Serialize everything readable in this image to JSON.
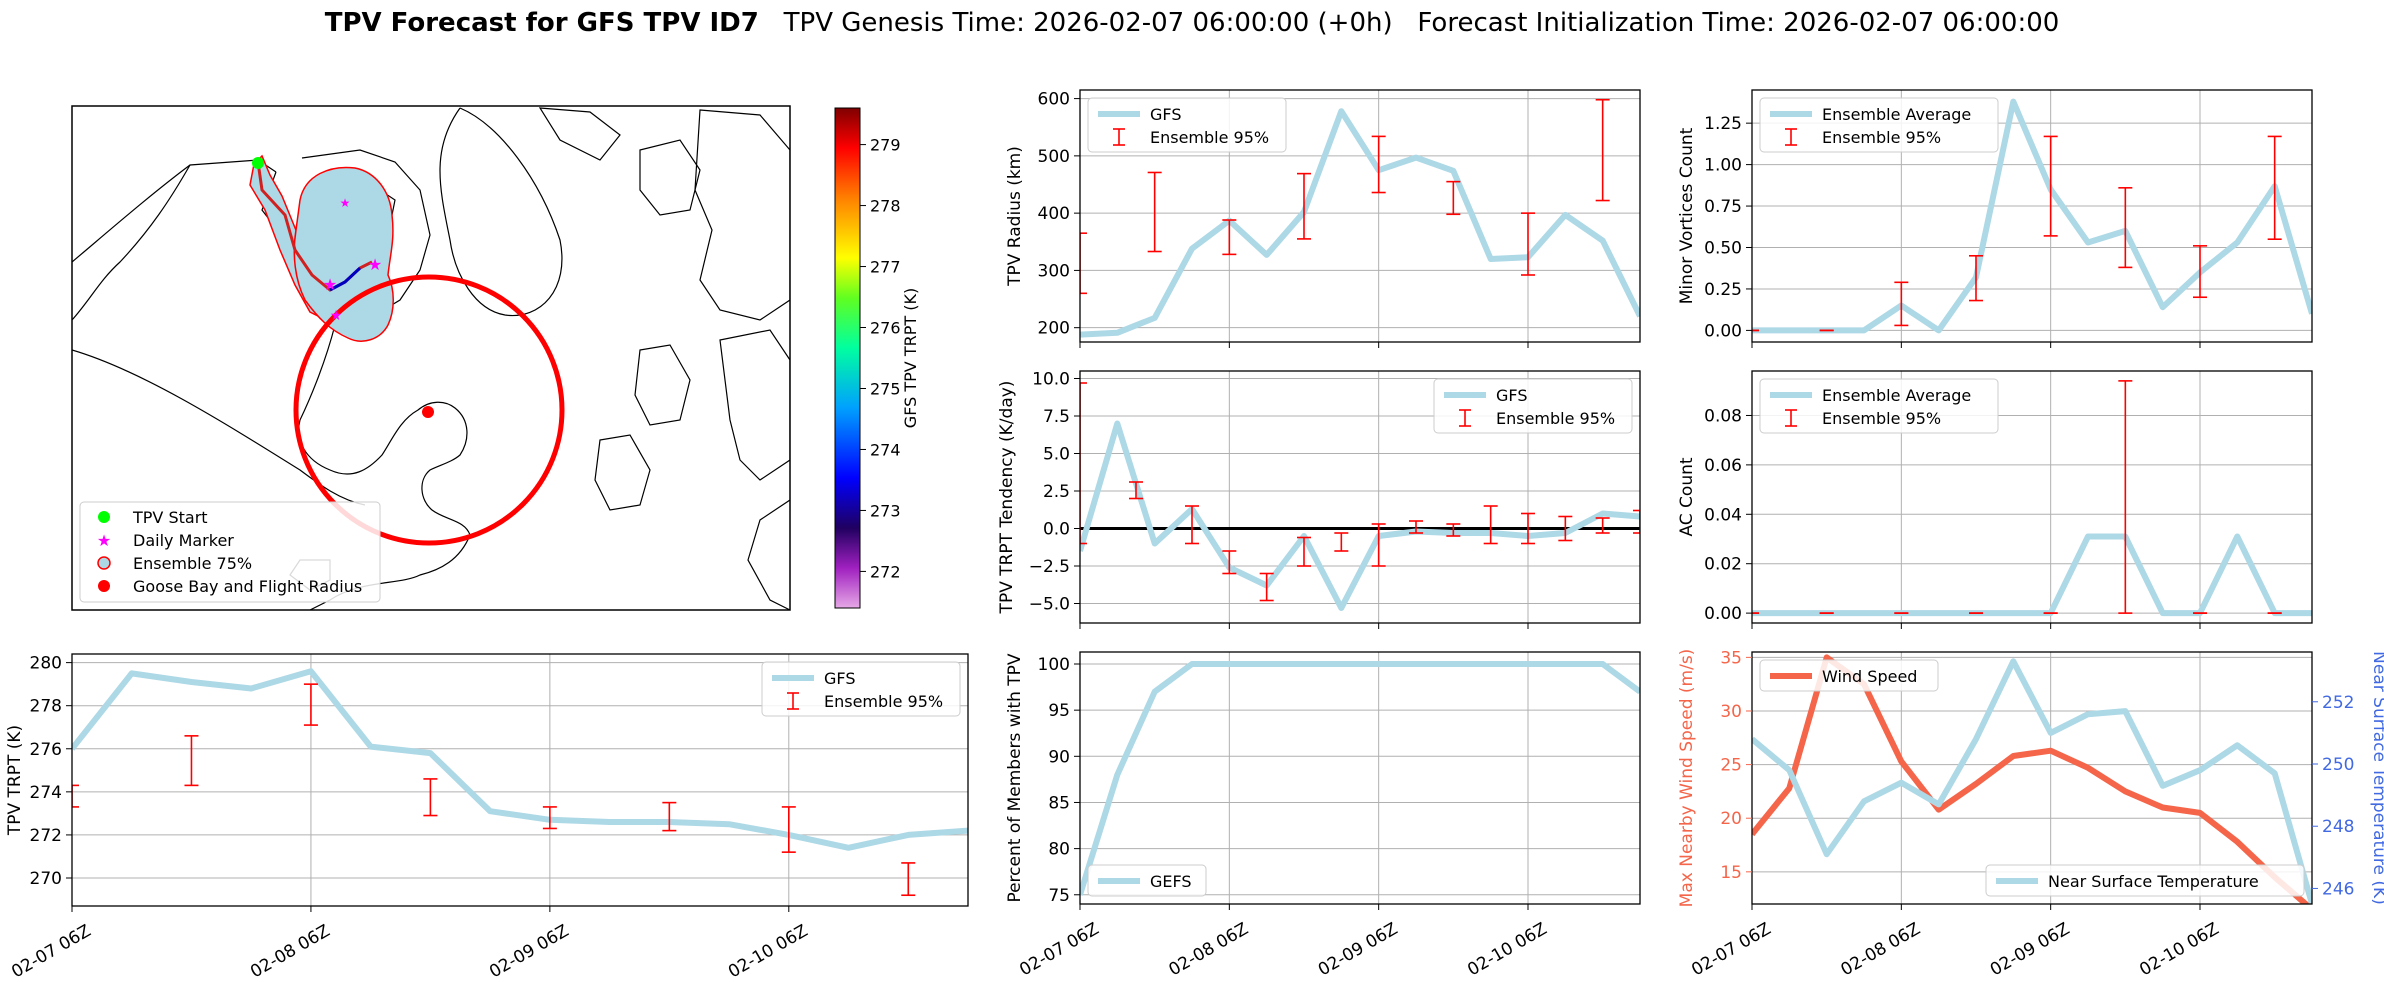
{
  "header": {
    "title_bold": "TPV Forecast for GFS TPV ID7",
    "title_rest": "   TPV Genesis Time: 2026-02-07 06:00:00 (+0h)   Forecast Initialization Time: 2026-02-07 06:00:00"
  },
  "colors": {
    "light_blue": "#add8e6",
    "red": "#ff0000",
    "tomato": "#f4654a",
    "royal_blue": "#4169e1",
    "grid": "#b0b0b0"
  },
  "map": {
    "legend": [
      "TPV Start",
      "Daily Marker",
      "Ensemble 75%",
      "Goose Bay and Flight Radius"
    ],
    "colorbar": {
      "label": "GFS TPV TRPT (K)",
      "ticks": [
        272,
        273,
        274,
        275,
        276,
        277,
        278,
        279
      ],
      "range": [
        271.4,
        279.6
      ]
    }
  },
  "time_axis_labels": [
    "02-07 06Z",
    "02-08 06Z",
    "02-09 06Z",
    "02-10 06Z"
  ],
  "chart_data": [
    {
      "id": "trpt",
      "type": "line",
      "ylabel": "TPV TRPT (K)",
      "ylim": [
        268.7,
        280.4
      ],
      "yticks": [
        270,
        272,
        274,
        276,
        278,
        280
      ],
      "legend": "top-right",
      "series": [
        {
          "name": "GFS",
          "x": [
            0,
            6,
            12,
            18,
            24,
            30,
            36,
            42,
            48,
            54,
            60,
            66,
            72,
            78,
            84,
            90
          ],
          "y": [
            276.0,
            279.5,
            279.1,
            278.8,
            279.6,
            276.1,
            275.8,
            273.1,
            272.7,
            272.6,
            272.6,
            272.5,
            272.0,
            271.4,
            272.0,
            272.2
          ]
        }
      ],
      "errorbars": {
        "name": "Ensemble 95%",
        "x": [
          0,
          12,
          24,
          36,
          48,
          60,
          72,
          84
        ],
        "low": [
          273.3,
          274.3,
          277.1,
          272.9,
          272.3,
          272.2,
          271.2,
          269.2
        ],
        "high": [
          274.3,
          276.6,
          279.0,
          274.6,
          273.3,
          273.5,
          273.3,
          270.7
        ]
      }
    },
    {
      "id": "radius",
      "type": "line",
      "ylabel": "TPV Radius (km)",
      "ylim": [
        175,
        615
      ],
      "yticks": [
        200,
        300,
        400,
        500,
        600
      ],
      "legend": "top-left",
      "series": [
        {
          "name": "GFS",
          "x": [
            0,
            6,
            12,
            18,
            24,
            30,
            36,
            42,
            48,
            54,
            60,
            66,
            72,
            78,
            84,
            90
          ],
          "y": [
            188,
            191,
            217,
            338,
            387,
            327,
            402,
            578,
            475,
            497,
            474,
            320,
            323,
            397,
            352,
            220
          ]
        }
      ],
      "errorbars": {
        "name": "Ensemble 95%",
        "x": [
          0,
          12,
          24,
          36,
          48,
          60,
          72,
          84
        ],
        "low": [
          260,
          333,
          328,
          355,
          436,
          398,
          292,
          422
        ],
        "high": [
          365,
          471,
          388,
          469,
          534,
          455,
          400,
          598
        ]
      }
    },
    {
      "id": "minor",
      "type": "line",
      "ylabel": "Minor Vortices Count",
      "ylim": [
        -0.07,
        1.45
      ],
      "yticks": [
        0.0,
        0.25,
        0.5,
        0.75,
        1.0,
        1.25
      ],
      "legend": "top-left",
      "series": [
        {
          "name": "Ensemble Average",
          "x": [
            0,
            6,
            12,
            18,
            24,
            30,
            36,
            42,
            48,
            54,
            60,
            66,
            72,
            78,
            84,
            90
          ],
          "y": [
            0,
            0,
            0,
            0,
            0.15,
            0,
            0.32,
            1.38,
            0.85,
            0.53,
            0.6,
            0.14,
            0.35,
            0.53,
            0.87,
            0.1
          ]
        }
      ],
      "errorbars": {
        "name": "Ensemble 95%",
        "x": [
          0,
          12,
          24,
          36,
          48,
          60,
          72,
          84
        ],
        "low": [
          0,
          0,
          0.03,
          0.18,
          0.57,
          0.38,
          0.2,
          0.55
        ],
        "high": [
          0,
          0,
          0.29,
          0.45,
          1.17,
          0.86,
          0.51,
          1.17
        ]
      }
    },
    {
      "id": "tendency",
      "type": "line",
      "ylabel": "TPV TRPT Tendency (K/day)",
      "ylim": [
        -6.3,
        10.5
      ],
      "yticks": [
        -5.0,
        -2.5,
        0.0,
        2.5,
        5.0,
        7.5,
        10.0
      ],
      "legend": "top-right",
      "series": [
        {
          "name": "GFS",
          "x": [
            0,
            6,
            12,
            18,
            24,
            30,
            36,
            42,
            48,
            54,
            60,
            66,
            72,
            78,
            84,
            90
          ],
          "y": [
            -1.5,
            7.0,
            -1.0,
            1.3,
            -2.6,
            -3.8,
            -0.5,
            -5.3,
            -0.5,
            -0.2,
            -0.3,
            -0.3,
            -0.5,
            -0.3,
            1.0,
            0.8
          ]
        }
      ],
      "errorbars": {
        "name": "Ensemble 95%",
        "x": [
          0,
          9,
          18,
          24,
          30,
          36,
          42,
          48,
          54,
          60,
          66,
          72,
          78,
          84,
          90
        ],
        "low": [
          -1.0,
          2.0,
          -1.0,
          -3.0,
          -4.8,
          -2.5,
          -1.5,
          -2.5,
          -0.3,
          -0.5,
          -1.0,
          -1.0,
          -0.8,
          -0.3,
          -0.3
        ],
        "high": [
          9.7,
          3.1,
          1.5,
          -1.5,
          -3.0,
          -0.6,
          -0.3,
          0.3,
          0.5,
          0.3,
          1.5,
          1.0,
          0.8,
          0.7,
          1.2
        ]
      },
      "zero_line": true
    },
    {
      "id": "ac",
      "type": "line",
      "ylabel": "AC Count",
      "ylim": [
        -0.004,
        0.098
      ],
      "yticks": [
        0.0,
        0.02,
        0.04,
        0.06,
        0.08
      ],
      "legend": "top-left",
      "series": [
        {
          "name": "Ensemble Average",
          "x": [
            0,
            6,
            12,
            18,
            24,
            30,
            36,
            42,
            48,
            54,
            60,
            66,
            72,
            78,
            84,
            90
          ],
          "y": [
            0,
            0,
            0,
            0,
            0,
            0,
            0,
            0,
            0,
            0.031,
            0.031,
            0,
            0,
            0.031,
            0,
            0
          ]
        }
      ],
      "errorbars": {
        "name": "Ensemble 95%",
        "x": [
          0,
          12,
          24,
          36,
          48,
          60,
          72,
          84
        ],
        "low": [
          0,
          0,
          0,
          0,
          0,
          0,
          0,
          0
        ],
        "high": [
          0,
          0,
          0,
          0,
          0,
          0.094,
          0,
          0
        ]
      }
    },
    {
      "id": "percent",
      "type": "line",
      "ylabel": "Percent of Members with TPV",
      "ylim": [
        74,
        101.3
      ],
      "yticks": [
        75,
        80,
        85,
        90,
        95,
        100
      ],
      "legend": "bottom-left",
      "series": [
        {
          "name": "GEFS",
          "x": [
            0,
            6,
            12,
            18,
            24,
            30,
            36,
            42,
            48,
            54,
            60,
            66,
            72,
            78,
            84,
            90
          ],
          "y": [
            75,
            88,
            97,
            100,
            100,
            100,
            100,
            100,
            100,
            100,
            100,
            100,
            100,
            100,
            100,
            97
          ]
        }
      ]
    },
    {
      "id": "wind",
      "type": "line",
      "ylabel": "Max Nearby Wind Speed (m/s)",
      "ylim": [
        12,
        35.5
      ],
      "yticks": [
        15,
        20,
        25,
        30,
        35
      ],
      "ylabel_right": "Near Surface Temperature (K)",
      "ylim_right": [
        245.5,
        253.6
      ],
      "yticks_right": [
        246,
        248,
        250,
        252
      ],
      "legend": "top-left / bottom-right",
      "series": [
        {
          "name": "Wind Speed",
          "axis": "left",
          "x": [
            0,
            6,
            12,
            18,
            24,
            30,
            36,
            42,
            48,
            54,
            60,
            66,
            72,
            78,
            84,
            90
          ],
          "y": [
            18.5,
            22.8,
            35.0,
            32.5,
            25.3,
            20.8,
            23.2,
            25.8,
            26.3,
            24.7,
            22.5,
            21.0,
            20.5,
            17.8,
            14.5,
            11.5
          ]
        },
        {
          "name": "Near Surface Temperature",
          "axis": "right",
          "x": [
            0,
            6,
            12,
            18,
            24,
            30,
            36,
            42,
            48,
            54,
            60,
            66,
            72,
            78,
            84,
            90
          ],
          "y": [
            250.8,
            249.8,
            247.1,
            248.8,
            249.4,
            248.7,
            250.8,
            253.3,
            251.0,
            251.6,
            251.7,
            249.3,
            249.8,
            250.6,
            249.7,
            245.5
          ]
        }
      ]
    }
  ]
}
